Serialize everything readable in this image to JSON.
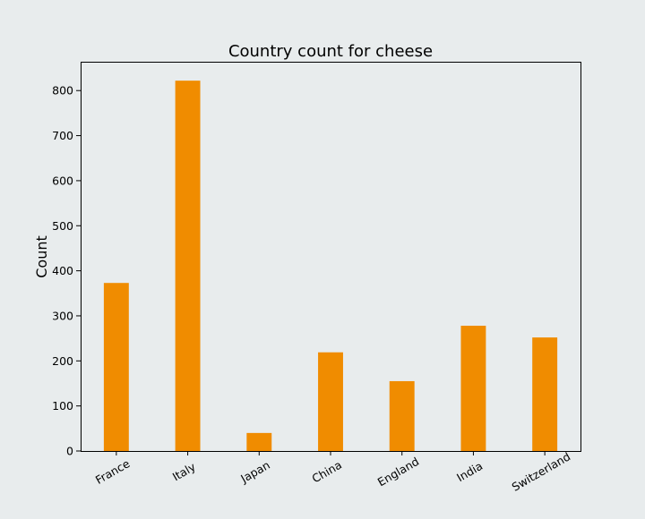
{
  "chart_data": {
    "type": "bar",
    "title": "Country count for cheese",
    "xlabel": "",
    "ylabel": "Count",
    "categories": [
      "France",
      "Italy",
      "Japan",
      "China",
      "England",
      "India",
      "Switzerland"
    ],
    "values": [
      373,
      822,
      40,
      219,
      155,
      278,
      252
    ],
    "ylim": [
      0,
      864
    ],
    "yticks": [
      0,
      100,
      200,
      300,
      400,
      500,
      600,
      700,
      800
    ],
    "grid": false,
    "legend": "none",
    "colors": {
      "bar": "#f08c00",
      "background": "#e8eced"
    }
  }
}
